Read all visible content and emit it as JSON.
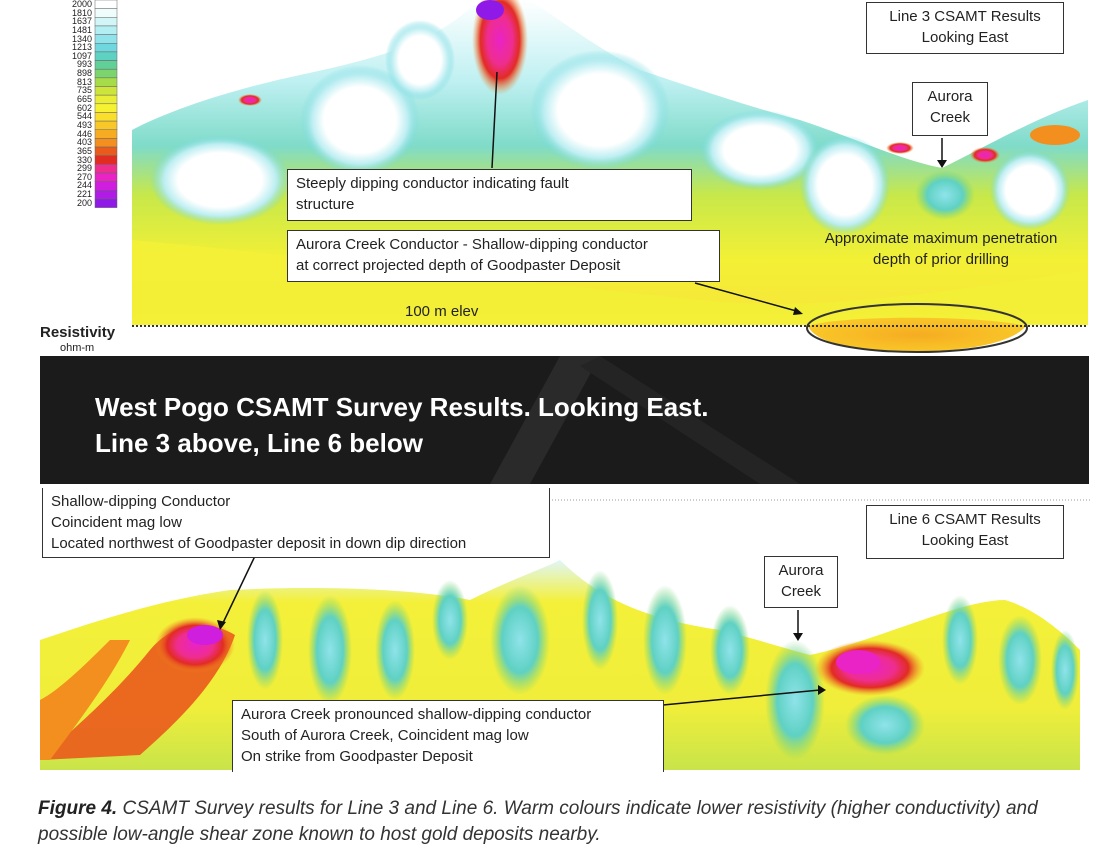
{
  "legend": {
    "title": "Resistivity",
    "unit": "ohm-m",
    "ticks": [
      "2000",
      "1810",
      "1637",
      "1481",
      "1340",
      "1213",
      "1097",
      "993",
      "898",
      "813",
      "735",
      "665",
      "602",
      "544",
      "493",
      "446",
      "403",
      "365",
      "330",
      "299",
      "270",
      "244",
      "221",
      "200"
    ],
    "colors": [
      "#ffffff",
      "#eefcfc",
      "#d2f5f7",
      "#b3eef2",
      "#90e3ea",
      "#6fd8df",
      "#5fd1c3",
      "#60cf98",
      "#7bd46e",
      "#a6dc4a",
      "#cde43a",
      "#e9ed35",
      "#f6f232",
      "#f9de2b",
      "#f9c728",
      "#f6ac22",
      "#f28f1e",
      "#ea5a1c",
      "#e12c23",
      "#ef2d8f",
      "#e923c6",
      "#cf1edd",
      "#b01be6",
      "#8f1ae8"
    ]
  },
  "line3": {
    "title_line1": "Line 3 CSAMT Results",
    "title_line2": "Looking East",
    "creek_line1": "Aurora",
    "creek_line2": "Creek",
    "fault_line1": "Steeply dipping conductor indicating fault",
    "fault_line2": "structure",
    "conductor_line1": "Aurora Creek Conductor  - Shallow-dipping conductor",
    "conductor_line2": "at correct projected depth of Goodpaster Deposit",
    "penetration_line1": "Approximate maximum  penetration",
    "penetration_line2": "depth of prior drilling",
    "elev_label": "100 m elev"
  },
  "banner": {
    "line1": "West Pogo CSAMT Survey Results.  Looking East.",
    "line2": "Line 3 above, Line 6 below"
  },
  "line6": {
    "title_line1": "Line 6 CSAMT Results",
    "title_line2": "Looking East",
    "creek_line1": "Aurora",
    "creek_line2": "Creek",
    "shallow_line1": "Shallow-dipping Conductor",
    "shallow_line2": "Coincident  mag low",
    "shallow_line3": "Located northwest of Goodpaster deposit in down dip direction",
    "pronounced_line1": "Aurora Creek pronounced shallow-dipping conductor",
    "pronounced_line2": "South of Aurora Creek, Coincident mag low",
    "pronounced_line3": "On strike from Goodpaster Deposit"
  },
  "caption": {
    "label": "Figure 4.",
    "text": " CSAMT Survey results for Line 3 and Line 6. Warm colours indicate lower resistivity (higher conductivity) and possible low-angle shear zone known to host gold deposits nearby."
  }
}
